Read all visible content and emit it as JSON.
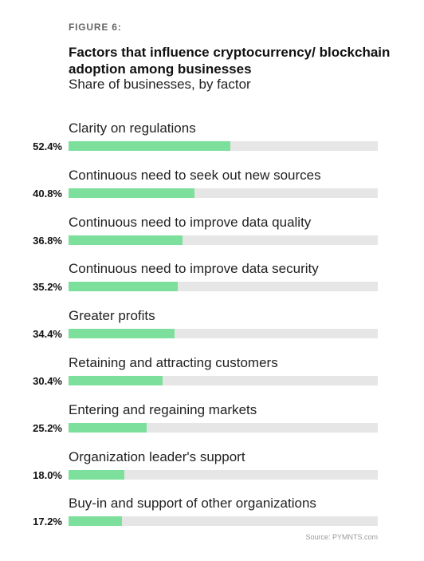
{
  "figure_label": "FIGURE 6:",
  "chart_data": {
    "type": "bar",
    "orientation": "horizontal",
    "title": "Factors that influence cryptocurrency/ blockchain adoption among businesses",
    "subtitle": "Share of businesses, by factor",
    "categories": [
      "Clarity on regulations",
      "Continuous need to seek out new sources",
      "Continuous need to improve data quality",
      "Continuous need to improve data security",
      "Greater profits",
      "Retaining and attracting customers",
      "Entering and regaining markets",
      "Organization leader's support",
      "Buy-in and support of other organizations"
    ],
    "values": [
      52.4,
      40.8,
      36.8,
      35.2,
      34.4,
      30.4,
      25.2,
      18.0,
      17.2
    ],
    "value_labels": [
      "52.4%",
      "40.8%",
      "36.8%",
      "35.2%",
      "34.4%",
      "30.4%",
      "25.2%",
      "18.0%",
      "17.2%"
    ],
    "xlim": [
      0,
      100
    ],
    "bar_color": "#7ddf9c",
    "track_color": "#e6e6e6"
  },
  "source": "Source: PYMNTS.com"
}
